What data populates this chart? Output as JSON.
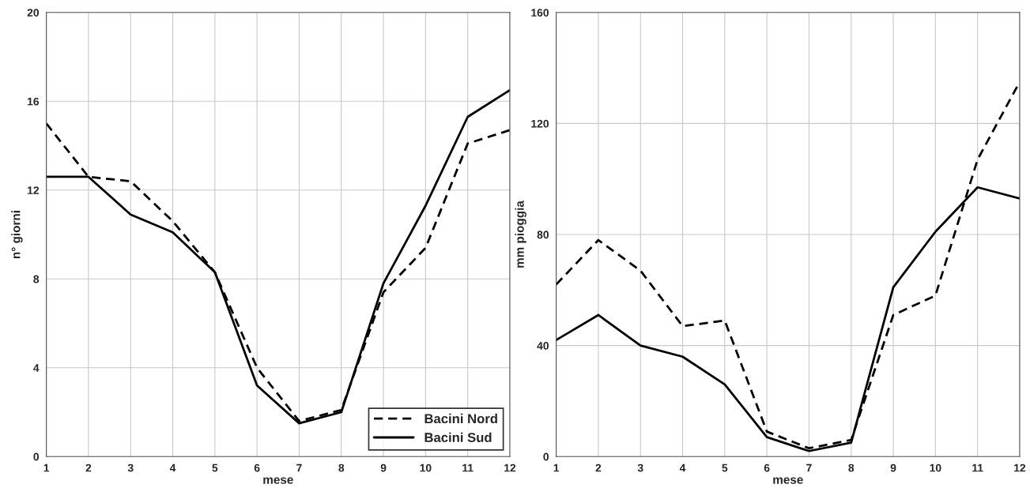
{
  "chart_data": [
    {
      "type": "line",
      "xlabel": "mese",
      "ylabel": "n° giorni",
      "x": [
        1,
        2,
        3,
        4,
        5,
        6,
        7,
        8,
        9,
        10,
        11,
        12
      ],
      "xlim": [
        1,
        12
      ],
      "xticks": [
        1,
        2,
        3,
        4,
        5,
        6,
        7,
        8,
        9,
        10,
        11,
        12
      ],
      "ylim": [
        0,
        20
      ],
      "yticks": [
        0,
        4,
        8,
        12,
        16,
        20
      ],
      "grid": true,
      "legend": "bottom right",
      "series": [
        {
          "name": "Bacini Nord",
          "color": "#000000",
          "line_style": "dashed",
          "values": [
            15.0,
            12.6,
            12.4,
            10.6,
            8.3,
            4.0,
            1.6,
            2.1,
            7.4,
            9.4,
            14.1,
            14.7
          ]
        },
        {
          "name": "Bacini Sud",
          "color": "#000000",
          "line_style": "solid",
          "values": [
            12.6,
            12.6,
            10.9,
            10.1,
            8.3,
            3.2,
            1.5,
            2.0,
            7.8,
            11.3,
            15.3,
            16.5
          ]
        }
      ]
    },
    {
      "type": "line",
      "xlabel": "mese",
      "ylabel": "mm pioggia",
      "x": [
        1,
        2,
        3,
        4,
        5,
        6,
        7,
        8,
        9,
        10,
        11,
        12
      ],
      "xlim": [
        1,
        12
      ],
      "xticks": [
        1,
        2,
        3,
        4,
        5,
        6,
        7,
        8,
        9,
        10,
        11,
        12
      ],
      "ylim": [
        0,
        160
      ],
      "yticks": [
        0,
        40,
        80,
        120,
        160
      ],
      "grid": true,
      "series": [
        {
          "color": "#000000",
          "line_style": "dashed",
          "values": [
            62,
            78,
            67,
            47,
            49,
            9,
            3,
            6,
            51,
            58,
            107,
            135
          ]
        },
        {
          "color": "#000000",
          "line_style": "solid",
          "values": [
            42,
            51,
            40,
            36,
            26,
            7,
            2,
            5,
            61,
            81,
            97,
            93
          ]
        }
      ]
    }
  ]
}
